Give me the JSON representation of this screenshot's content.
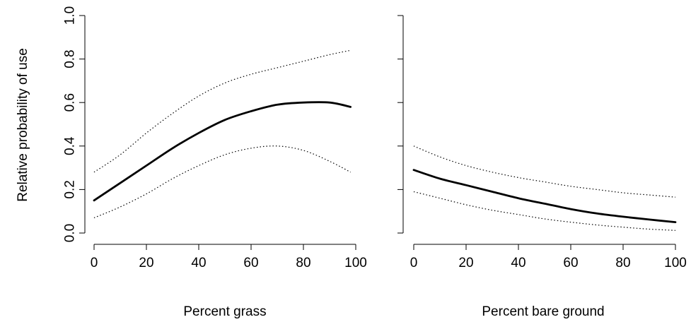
{
  "chart_data": [
    {
      "type": "line",
      "xlabel": "Percent grass",
      "ylabel": "Relative probability of use",
      "xlim": [
        0,
        100
      ],
      "ylim": [
        0,
        1
      ],
      "xticks": [
        0,
        20,
        40,
        60,
        80,
        100
      ],
      "yticks": [
        0.0,
        0.2,
        0.4,
        0.6,
        0.8,
        1.0
      ],
      "xtick_labels": [
        "0",
        "20",
        "40",
        "60",
        "80",
        "100"
      ],
      "ytick_labels": [
        "0.0",
        "0.2",
        "0.4",
        "0.6",
        "0.8",
        "1.0"
      ],
      "grid": false,
      "x": [
        0,
        10,
        20,
        30,
        40,
        50,
        60,
        70,
        80,
        90,
        98
      ],
      "series": [
        {
          "role": "estimate",
          "values": [
            0.15,
            0.23,
            0.31,
            0.39,
            0.46,
            0.52,
            0.56,
            0.59,
            0.6,
            0.6,
            0.58
          ]
        },
        {
          "role": "upper-ci",
          "values": [
            0.28,
            0.36,
            0.46,
            0.55,
            0.63,
            0.69,
            0.73,
            0.76,
            0.79,
            0.82,
            0.84
          ]
        },
        {
          "role": "lower-ci",
          "values": [
            0.07,
            0.12,
            0.18,
            0.25,
            0.31,
            0.36,
            0.39,
            0.4,
            0.38,
            0.33,
            0.28
          ]
        }
      ]
    },
    {
      "type": "line",
      "xlabel": "Percent bare ground",
      "ylabel": "",
      "xlim": [
        0,
        100
      ],
      "ylim": [
        0,
        1
      ],
      "xticks": [
        0,
        20,
        40,
        60,
        80,
        100
      ],
      "yticks": [
        0.0,
        0.2,
        0.4,
        0.6,
        0.8,
        1.0
      ],
      "xtick_labels": [
        "0",
        "20",
        "40",
        "60",
        "80",
        "100"
      ],
      "ytick_labels": [],
      "grid": false,
      "x": [
        0,
        10,
        20,
        30,
        40,
        50,
        60,
        70,
        80,
        90,
        100
      ],
      "series": [
        {
          "role": "estimate",
          "values": [
            0.29,
            0.25,
            0.22,
            0.19,
            0.16,
            0.135,
            0.11,
            0.09,
            0.075,
            0.062,
            0.05
          ]
        },
        {
          "role": "upper-ci",
          "values": [
            0.4,
            0.35,
            0.31,
            0.28,
            0.255,
            0.235,
            0.215,
            0.2,
            0.185,
            0.175,
            0.165
          ]
        },
        {
          "role": "lower-ci",
          "values": [
            0.19,
            0.16,
            0.13,
            0.105,
            0.085,
            0.065,
            0.05,
            0.037,
            0.027,
            0.018,
            0.012
          ]
        }
      ]
    }
  ]
}
